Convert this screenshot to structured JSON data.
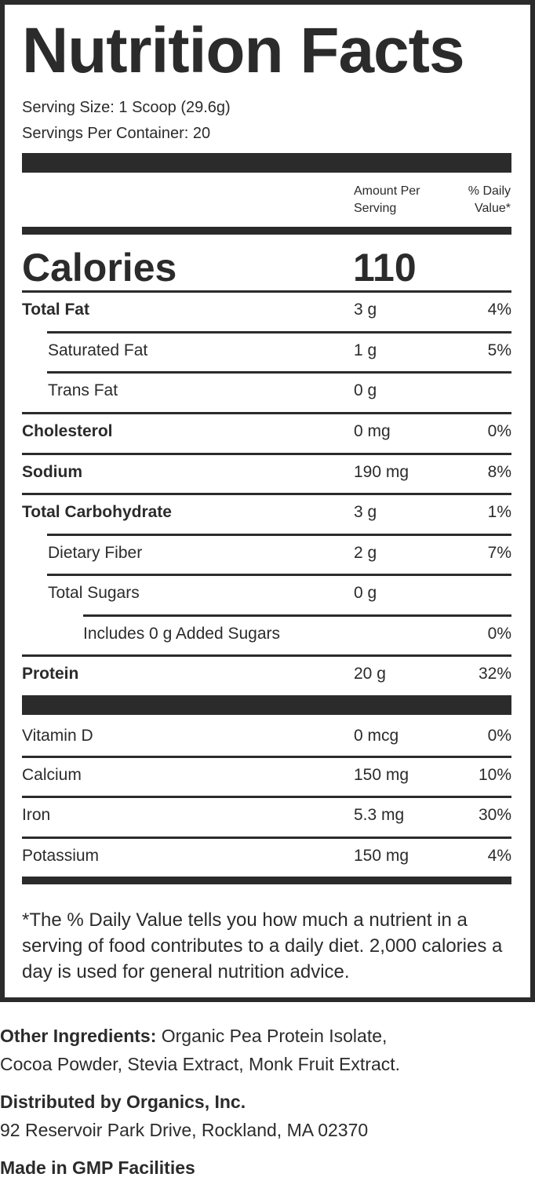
{
  "label": {
    "title": "Nutrition Facts",
    "serving_size": "Serving Size: 1 Scoop (29.6g)",
    "servings_per_container": "Servings Per Container: 20",
    "header_amount_line1": "Amount Per",
    "header_amount_line2": "Serving",
    "header_dv_line1": "% Daily",
    "header_dv_line2": "Value*",
    "calories_label": "Calories",
    "calories_value": "110",
    "nutrients": [
      {
        "name": "Total Fat",
        "amount": "3 g",
        "dv": "4%"
      },
      {
        "name": "Saturated Fat",
        "amount": "1 g",
        "dv": "5%"
      },
      {
        "name": "Trans Fat",
        "amount": "0 g",
        "dv": ""
      },
      {
        "name": "Cholesterol",
        "amount": "0 mg",
        "dv": "0%"
      },
      {
        "name": "Sodium",
        "amount": "190 mg",
        "dv": "8%"
      },
      {
        "name": "Total Carbohydrate",
        "amount": "3 g",
        "dv": "1%"
      },
      {
        "name": "Dietary Fiber",
        "amount": "2 g",
        "dv": "7%"
      },
      {
        "name": "Total Sugars",
        "amount": "0 g",
        "dv": ""
      },
      {
        "name": "Includes 0 g Added Sugars",
        "amount": "",
        "dv": "0%"
      },
      {
        "name": "Protein",
        "amount": "20 g",
        "dv": "32%"
      }
    ],
    "vitamins": [
      {
        "name": "Vitamin D",
        "amount": "0 mcg",
        "dv": "0%"
      },
      {
        "name": "Calcium",
        "amount": "150 mg",
        "dv": "10%"
      },
      {
        "name": "Iron",
        "amount": "5.3 mg",
        "dv": "30%"
      },
      {
        "name": "Potassium",
        "amount": "150 mg",
        "dv": "4%"
      }
    ],
    "footnote": "*The % Daily Value tells you how much a nutrient in a serving of food contributes to a daily diet. 2,000 calories a day is used for general nutrition advice."
  },
  "info": {
    "ingredients_label": "Other Ingredients:",
    "ingredients_line1": "Organic Pea Protein Isolate,",
    "ingredients_line2": "Cocoa Powder, Stevia Extract, Monk Fruit Extract.",
    "distributor": "Distributed by Organics, Inc.",
    "address": "92 Reservoir Park Drive, Rockland, MA 02370",
    "made_in": "Made in GMP Facilities"
  },
  "colors": {
    "ink": "#2b2b2b",
    "background": "#ffffff"
  }
}
